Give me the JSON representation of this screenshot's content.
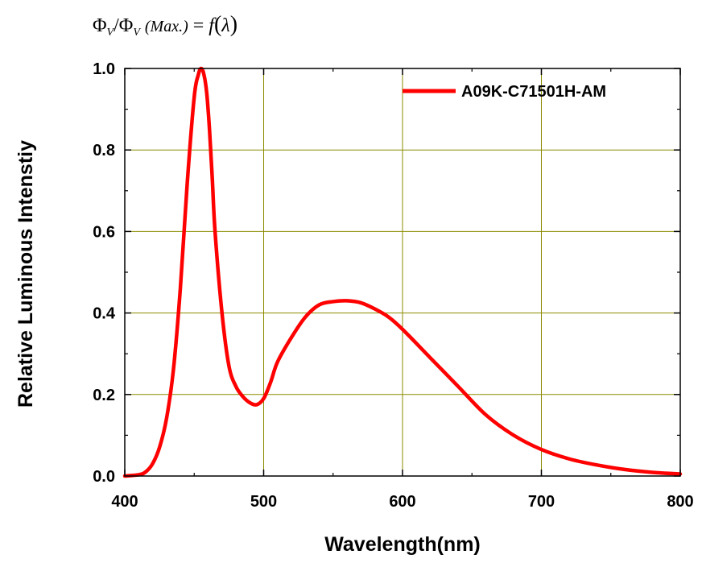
{
  "formula": {
    "phi": "Φ",
    "sub": "V",
    "slash": "/",
    "max": "(Max.)",
    "eq": "=",
    "f": "f",
    "lp": "(",
    "lambda": "λ",
    "rp": ")"
  },
  "chart_data": {
    "type": "line",
    "xlabel": "Wavelength(nm)",
    "ylabel": "Relative Luminous Intenstiy",
    "xlim": [
      400,
      800
    ],
    "ylim": [
      0,
      1.0
    ],
    "xticks": [
      400,
      500,
      600,
      700,
      800
    ],
    "xtick_labels": [
      "400",
      "500",
      "600",
      "700",
      "800"
    ],
    "yticks": [
      0,
      0.2,
      0.4,
      0.6,
      0.8,
      1.0
    ],
    "ytick_labels": [
      "0.0",
      "0.2",
      "0.4",
      "0.6",
      "0.8",
      "1.0"
    ],
    "grid": true,
    "grid_color": "#8b8b00",
    "legend_position": "top-right",
    "series": [
      {
        "name": "A09K-C71501H-AM",
        "color": "#ff0000",
        "x": [
          400,
          410,
          415,
          420,
          425,
          430,
          435,
          440,
          445,
          450,
          453,
          455,
          457,
          459,
          461,
          463,
          465,
          470,
          475,
          480,
          485,
          490,
          495,
          500,
          505,
          510,
          520,
          530,
          540,
          550,
          560,
          570,
          580,
          590,
          600,
          620,
          640,
          660,
          680,
          700,
          720,
          740,
          760,
          780,
          800
        ],
        "y": [
          0.0,
          0.003,
          0.01,
          0.03,
          0.07,
          0.14,
          0.26,
          0.46,
          0.72,
          0.93,
          0.985,
          1.0,
          0.985,
          0.94,
          0.85,
          0.73,
          0.6,
          0.4,
          0.27,
          0.22,
          0.195,
          0.18,
          0.175,
          0.19,
          0.23,
          0.28,
          0.34,
          0.39,
          0.42,
          0.428,
          0.43,
          0.425,
          0.41,
          0.39,
          0.36,
          0.29,
          0.22,
          0.15,
          0.1,
          0.065,
          0.042,
          0.027,
          0.016,
          0.009,
          0.005
        ]
      }
    ]
  }
}
